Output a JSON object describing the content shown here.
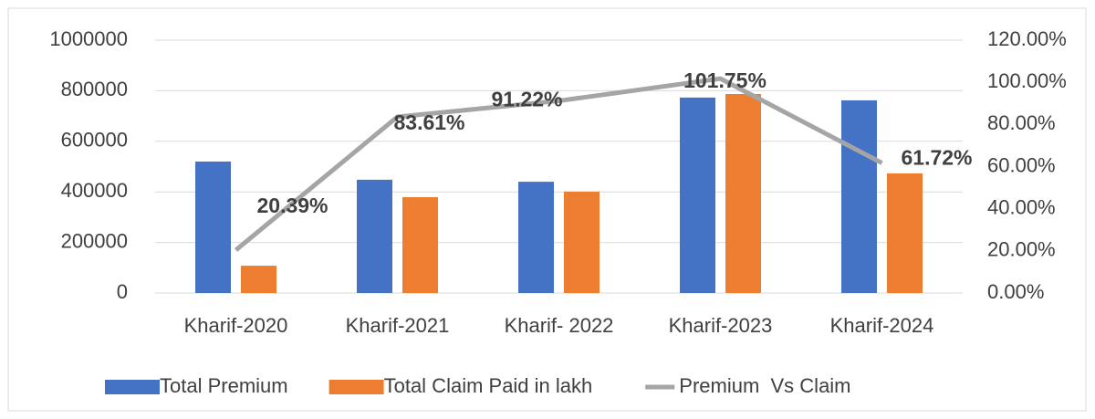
{
  "chart_data": {
    "type": "bar",
    "categories": [
      "Kharif-2020",
      "Kharif-2021",
      "Kharif- 2022",
      "Kharif-2023",
      "Kharif-2024"
    ],
    "series": [
      {
        "name": "Total Premium",
        "color": "#4472c4",
        "type": "bar",
        "values": [
          520000,
          448000,
          440000,
          773000,
          762000
        ]
      },
      {
        "name": "Total Claim Paid in lakh",
        "color": "#ed7d31",
        "type": "bar",
        "values": [
          108000,
          379000,
          401000,
          787000,
          473000
        ]
      },
      {
        "name": "Premium  Vs Claim",
        "color": "#a5a5a5",
        "type": "line",
        "axis": "y2",
        "values": [
          20.39,
          83.61,
          91.22,
          101.75,
          61.72
        ],
        "value_labels": [
          "20.39%",
          "83.61%",
          "91.22%",
          "101.75%",
          "61.72%"
        ]
      }
    ],
    "ylim": [
      0,
      1000000
    ],
    "yticks": [
      0,
      200000,
      400000,
      600000,
      800000,
      1000000
    ],
    "y2lim": [
      0,
      120
    ],
    "y2ticks": [
      {
        "value": 0,
        "label": "0.00%"
      },
      {
        "value": 20,
        "label": "20.00%"
      },
      {
        "value": 40,
        "label": "40.00%"
      },
      {
        "value": 60,
        "label": "60.00%"
      },
      {
        "value": 80,
        "label": "80.00%"
      },
      {
        "value": 100,
        "label": "100.00%"
      },
      {
        "value": 120,
        "label": "120.00%"
      }
    ],
    "grid": true,
    "legend": "bottom"
  }
}
